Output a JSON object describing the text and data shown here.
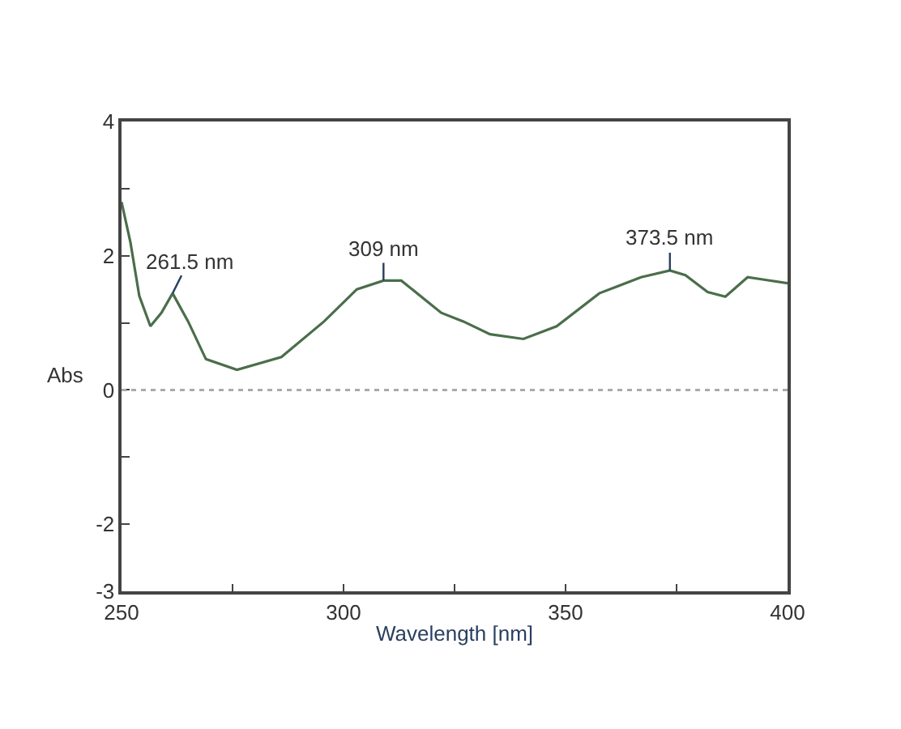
{
  "chart_data": {
    "type": "line",
    "xlabel": "Wavelength [nm]",
    "ylabel": "Abs",
    "x": [
      250,
      252,
      254,
      256.5,
      259,
      261.5,
      265,
      269,
      276,
      286,
      295.6,
      303,
      309,
      313,
      322,
      327,
      333,
      340.5,
      348,
      357.6,
      367,
      373.5,
      377,
      382,
      386,
      391,
      395,
      400
    ],
    "series": [
      {
        "color": "#4a6e4a",
        "values": [
          2.8,
          2.2,
          1.4,
          0.95,
          1.15,
          1.44,
          1.02,
          0.46,
          0.3,
          0.49,
          1.02,
          1.5,
          1.63,
          1.63,
          1.15,
          1.02,
          0.83,
          0.76,
          0.95,
          1.44,
          1.68,
          1.78,
          1.71,
          1.46,
          1.39,
          1.68,
          1.64,
          1.59
        ]
      }
    ],
    "xlim": [
      250,
      400
    ],
    "ylim": [
      -3,
      4
    ],
    "xticks": [
      250,
      {
        "value": 275,
        "label": null
      },
      300,
      {
        "value": 325,
        "label": null
      },
      350,
      {
        "value": 375,
        "label": null
      },
      400
    ],
    "yticks": [
      -3,
      -2,
      {
        "value": -1,
        "label": null
      },
      0,
      {
        "value": 1,
        "label": null
      },
      2,
      {
        "value": 3,
        "label": null
      },
      4
    ],
    "ref_lines": [
      {
        "axis": "y",
        "value": 0,
        "color": "#aaaaaa",
        "line_style": "dotted"
      }
    ],
    "annotations": [
      {
        "text": "261.5 nm",
        "x": 261.5,
        "y": 1.44
      },
      {
        "text": "309 nm",
        "x": 309,
        "y": 1.63
      },
      {
        "text": "373.5 nm",
        "x": 373.5,
        "y": 1.78
      }
    ],
    "marker": "none",
    "line_style": "solid"
  }
}
